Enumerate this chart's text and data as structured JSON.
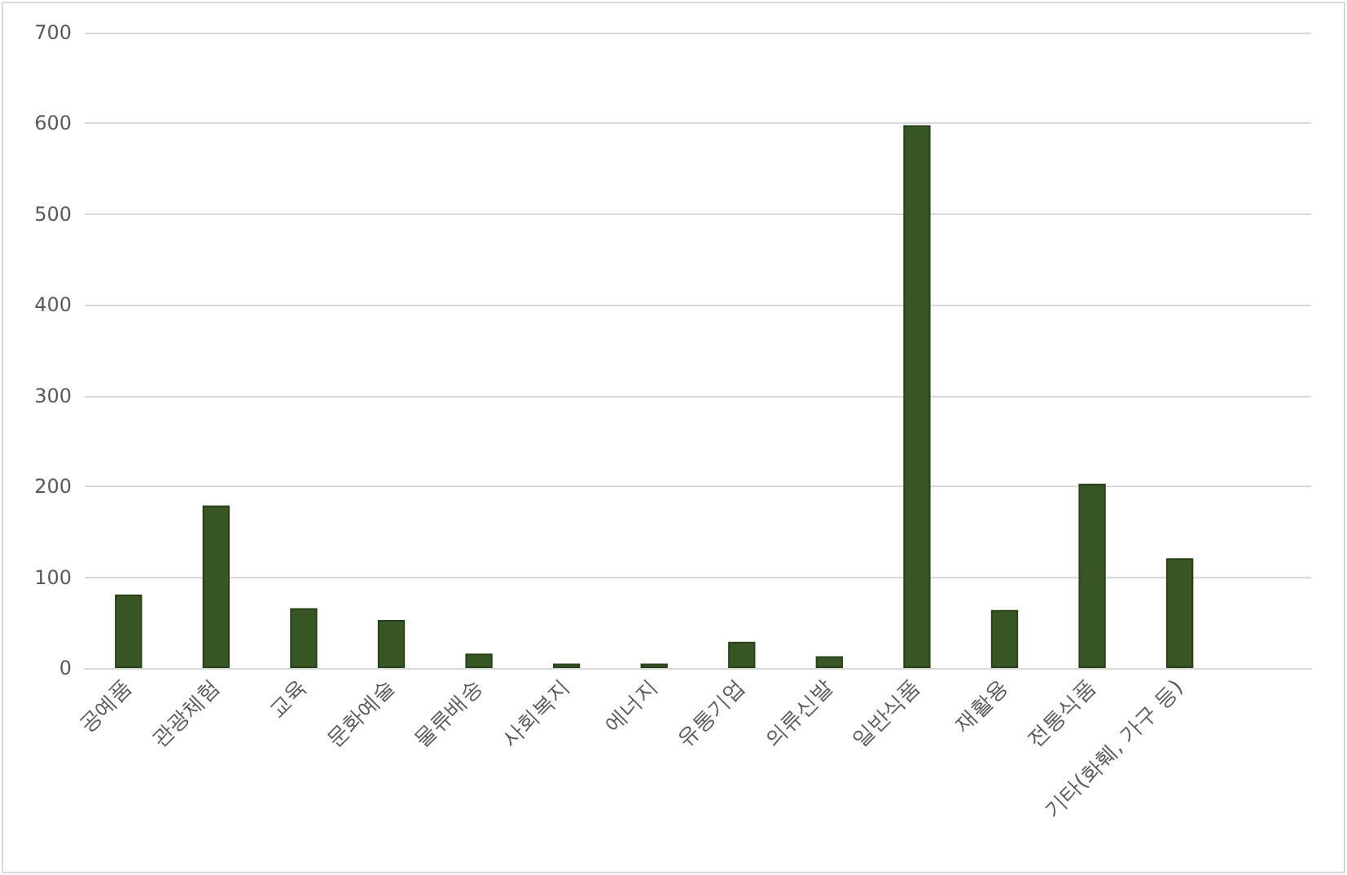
{
  "chart_data": {
    "type": "bar",
    "categories": [
      "공예품",
      "관광체험",
      "교육",
      "문화예술",
      "물류배송",
      "사회복지",
      "에너지",
      "유통기업",
      "의류신발",
      "일반식품",
      "재활용",
      "전통식품",
      "기타(화훼, 가구 등)",
      null
    ],
    "values": [
      81,
      179,
      66,
      53,
      16,
      5,
      5,
      29,
      13,
      598,
      64,
      203,
      121,
      null
    ],
    "color": "#375623",
    "ylim": [
      0,
      700
    ],
    "yticks": [
      0,
      100,
      200,
      300,
      400,
      500,
      600,
      700
    ],
    "grid": "y"
  }
}
